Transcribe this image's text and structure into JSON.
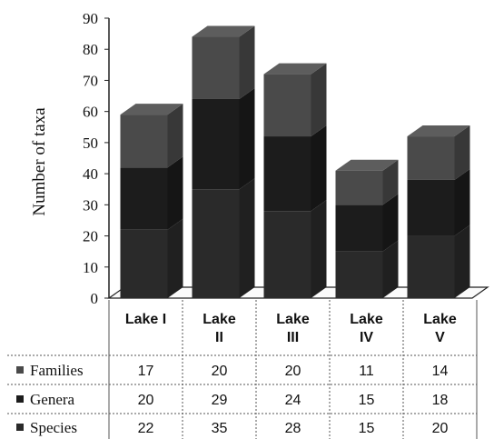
{
  "chart_data": {
    "type": "bar",
    "stacked": true,
    "three_d": true,
    "ylabel": "Number of taxa",
    "ylim": [
      0,
      90
    ],
    "yticks": [
      0,
      10,
      20,
      30,
      40,
      50,
      60,
      70,
      80,
      90
    ],
    "categories": [
      [
        "Lake I"
      ],
      [
        "Lake",
        "II"
      ],
      [
        "Lake",
        "III"
      ],
      [
        "Lake",
        "IV"
      ],
      [
        "Lake",
        "V"
      ]
    ],
    "series": [
      {
        "name": "Species",
        "values": [
          22,
          35,
          28,
          15,
          20
        ]
      },
      {
        "name": "Genera",
        "values": [
          20,
          29,
          24,
          15,
          18
        ]
      },
      {
        "name": "Families",
        "values": [
          17,
          20,
          20,
          11,
          14
        ]
      }
    ],
    "table_rows": [
      "Families",
      "Genera",
      "Species"
    ],
    "grid": false,
    "legend": "data-table-left"
  },
  "colors": {
    "Species": "#2a2a2a",
    "Genera": "#1c1c1c",
    "Families": "#4a4a4a",
    "axis": "#222222",
    "table_line": "#555555"
  }
}
